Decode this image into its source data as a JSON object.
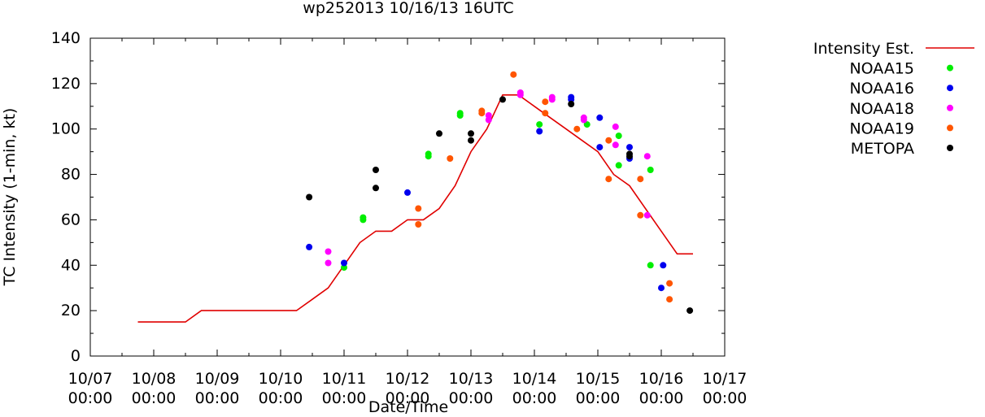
{
  "chart_data": {
    "type": "scatter",
    "title": "wp252013 10/16/13 16UTC",
    "xlabel": "Date/Time",
    "ylabel": "TC Intensity (1-min, kt)",
    "xlim": [
      0,
      10
    ],
    "ylim": [
      0,
      140
    ],
    "grid": false,
    "legend_position": "right",
    "x_ticks": [
      {
        "value": 0,
        "line1": "10/07",
        "line2": "00:00"
      },
      {
        "value": 1,
        "line1": "10/08",
        "line2": "00:00"
      },
      {
        "value": 2,
        "line1": "10/09",
        "line2": "00:00"
      },
      {
        "value": 3,
        "line1": "10/10",
        "line2": "00:00"
      },
      {
        "value": 4,
        "line1": "10/11",
        "line2": "00:00"
      },
      {
        "value": 5,
        "line1": "10/12",
        "line2": "00:00"
      },
      {
        "value": 6,
        "line1": "10/13",
        "line2": "00:00"
      },
      {
        "value": 7,
        "line1": "10/14",
        "line2": "00:00"
      },
      {
        "value": 8,
        "line1": "10/15",
        "line2": "00:00"
      },
      {
        "value": 9,
        "line1": "10/16",
        "line2": "00:00"
      },
      {
        "value": 10,
        "line1": "10/17",
        "line2": "00:00"
      }
    ],
    "y_ticks": [
      0,
      20,
      40,
      60,
      80,
      100,
      120,
      140
    ],
    "line_series": {
      "name": "Intensity Est.",
      "color": "#e00000",
      "points": [
        [
          0.75,
          15
        ],
        [
          1.5,
          15
        ],
        [
          1.75,
          20
        ],
        [
          3.25,
          20
        ],
        [
          3.5,
          25
        ],
        [
          3.75,
          30
        ],
        [
          4.0,
          40
        ],
        [
          4.25,
          50
        ],
        [
          4.5,
          55
        ],
        [
          4.75,
          55
        ],
        [
          5.0,
          60
        ],
        [
          5.25,
          60
        ],
        [
          5.5,
          65
        ],
        [
          5.75,
          75
        ],
        [
          6.0,
          90
        ],
        [
          6.25,
          100
        ],
        [
          6.5,
          115
        ],
        [
          6.75,
          115
        ],
        [
          7.0,
          110
        ],
        [
          7.25,
          105
        ],
        [
          7.5,
          100
        ],
        [
          7.75,
          95
        ],
        [
          8.0,
          90
        ],
        [
          8.25,
          80
        ],
        [
          8.5,
          75
        ],
        [
          8.75,
          65
        ],
        [
          9.0,
          55
        ],
        [
          9.25,
          45
        ],
        [
          9.5,
          45
        ]
      ]
    },
    "series": [
      {
        "name": "NOAA15",
        "color": "#00ee00",
        "points": [
          [
            4.0,
            39
          ],
          [
            4.3,
            61
          ],
          [
            4.3,
            60
          ],
          [
            5.33,
            89
          ],
          [
            5.33,
            88
          ],
          [
            5.83,
            107
          ],
          [
            5.83,
            106
          ],
          [
            7.08,
            102
          ],
          [
            7.83,
            102
          ],
          [
            8.33,
            97
          ],
          [
            8.33,
            84
          ],
          [
            8.83,
            82
          ],
          [
            8.83,
            40
          ]
        ]
      },
      {
        "name": "NOAA16",
        "color": "#0000ee",
        "points": [
          [
            3.45,
            48
          ],
          [
            4.0,
            41
          ],
          [
            5.0,
            72
          ],
          [
            7.08,
            99
          ],
          [
            7.58,
            114
          ],
          [
            7.58,
            113
          ],
          [
            8.03,
            105
          ],
          [
            8.03,
            92
          ],
          [
            8.5,
            92
          ],
          [
            8.5,
            87
          ],
          [
            9.0,
            30
          ],
          [
            9.03,
            40
          ]
        ]
      },
      {
        "name": "NOAA18",
        "color": "#ff00ff",
        "points": [
          [
            3.75,
            46
          ],
          [
            3.75,
            41
          ],
          [
            6.28,
            106
          ],
          [
            6.28,
            104
          ],
          [
            6.78,
            116
          ],
          [
            6.78,
            115
          ],
          [
            7.28,
            114
          ],
          [
            7.28,
            113
          ],
          [
            7.78,
            105
          ],
          [
            7.78,
            104
          ],
          [
            8.28,
            101
          ],
          [
            8.28,
            93
          ],
          [
            8.78,
            88
          ],
          [
            8.78,
            62
          ]
        ]
      },
      {
        "name": "NOAA19",
        "color": "#ff5500",
        "points": [
          [
            5.17,
            65
          ],
          [
            5.17,
            58
          ],
          [
            5.67,
            87
          ],
          [
            6.17,
            108
          ],
          [
            6.17,
            107
          ],
          [
            6.67,
            124
          ],
          [
            7.17,
            112
          ],
          [
            7.17,
            107
          ],
          [
            7.67,
            100
          ],
          [
            8.17,
            95
          ],
          [
            8.17,
            78
          ],
          [
            8.67,
            78
          ],
          [
            8.67,
            62
          ],
          [
            9.13,
            32
          ],
          [
            9.13,
            25
          ]
        ]
      },
      {
        "name": "METOPA",
        "color": "#000000",
        "points": [
          [
            3.45,
            70
          ],
          [
            4.5,
            82
          ],
          [
            4.5,
            74
          ],
          [
            5.5,
            98
          ],
          [
            6.0,
            98
          ],
          [
            6.0,
            95
          ],
          [
            6.5,
            113
          ],
          [
            7.58,
            111
          ],
          [
            8.5,
            89
          ],
          [
            8.5,
            88
          ],
          [
            9.45,
            20
          ]
        ]
      }
    ]
  }
}
